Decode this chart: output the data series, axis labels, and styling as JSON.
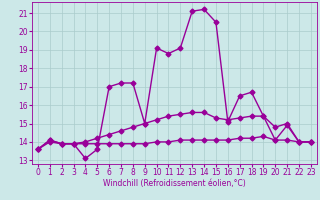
{
  "xlabel": "Windchill (Refroidissement éolien,°C)",
  "background_color": "#cce8e8",
  "grid_color": "#aacccc",
  "line_color": "#990099",
  "xlim": [
    -0.5,
    23.5
  ],
  "ylim": [
    12.8,
    21.6
  ],
  "yticks": [
    13,
    14,
    15,
    16,
    17,
    18,
    19,
    20,
    21
  ],
  "xticks": [
    0,
    1,
    2,
    3,
    4,
    5,
    6,
    7,
    8,
    9,
    10,
    11,
    12,
    13,
    14,
    15,
    16,
    17,
    18,
    19,
    20,
    21,
    22,
    23
  ],
  "series1_x": [
    0,
    1,
    2,
    3,
    4,
    5,
    6,
    7,
    8,
    9,
    10,
    11,
    12,
    13,
    14,
    15,
    16,
    17,
    18,
    19,
    20,
    21,
    22,
    23
  ],
  "series1_y": [
    13.6,
    14.1,
    13.9,
    13.9,
    13.1,
    13.6,
    17.0,
    17.2,
    17.2,
    15.0,
    19.1,
    18.8,
    19.1,
    21.1,
    21.2,
    20.5,
    15.1,
    16.5,
    16.7,
    15.4,
    14.1,
    14.9,
    14.0,
    14.0
  ],
  "series2_x": [
    0,
    1,
    2,
    3,
    4,
    5,
    6,
    7,
    8,
    9,
    10,
    11,
    12,
    13,
    14,
    15,
    16,
    17,
    18,
    19,
    20,
    21,
    22,
    23
  ],
  "series2_y": [
    13.6,
    14.0,
    13.9,
    13.9,
    13.9,
    13.9,
    13.9,
    13.9,
    13.9,
    13.9,
    14.0,
    14.0,
    14.1,
    14.1,
    14.1,
    14.1,
    14.1,
    14.2,
    14.2,
    14.3,
    14.1,
    14.1,
    14.0,
    14.0
  ],
  "series3_x": [
    0,
    1,
    2,
    3,
    4,
    5,
    6,
    7,
    8,
    9,
    10,
    11,
    12,
    13,
    14,
    15,
    16,
    17,
    18,
    19,
    20,
    21,
    22,
    23
  ],
  "series3_y": [
    13.6,
    14.1,
    13.9,
    13.9,
    14.0,
    14.2,
    14.4,
    14.6,
    14.8,
    15.0,
    15.2,
    15.4,
    15.5,
    15.6,
    15.6,
    15.3,
    15.2,
    15.3,
    15.4,
    15.4,
    14.8,
    15.0,
    14.0,
    14.0
  ],
  "marker_size": 2.5,
  "line_width": 1.0,
  "label_fontsize": 5.5,
  "tick_fontsize": 5.5
}
